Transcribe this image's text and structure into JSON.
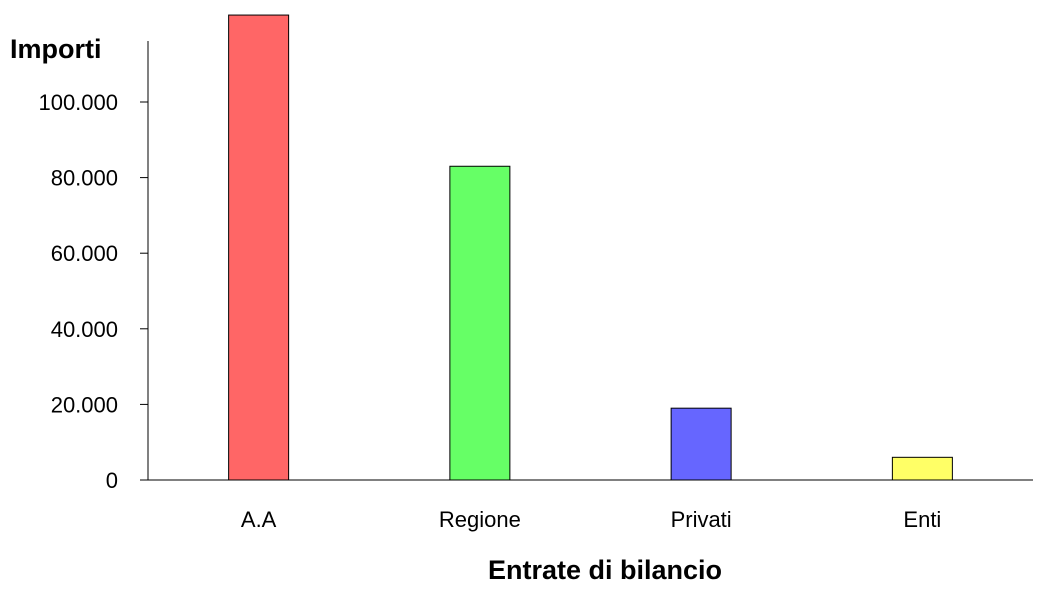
{
  "chart_data": {
    "type": "bar",
    "categories": [
      "A.A",
      "Regione",
      "Privati",
      "Enti"
    ],
    "values": [
      123000,
      83000,
      19000,
      6000
    ],
    "colors": [
      "#ff6666",
      "#66ff66",
      "#6666ff",
      "#ffff66"
    ],
    "ylabel": "Importi",
    "xlabel": "Entrate di bilancio",
    "ylim": [
      0,
      123000
    ],
    "yticks": [
      0,
      20000,
      40000,
      60000,
      80000,
      100000
    ],
    "ytick_labels": [
      "0",
      "20.000",
      "40.000",
      "60.000",
      "80.000",
      "100.000"
    ],
    "grid": false,
    "legend": "none"
  }
}
